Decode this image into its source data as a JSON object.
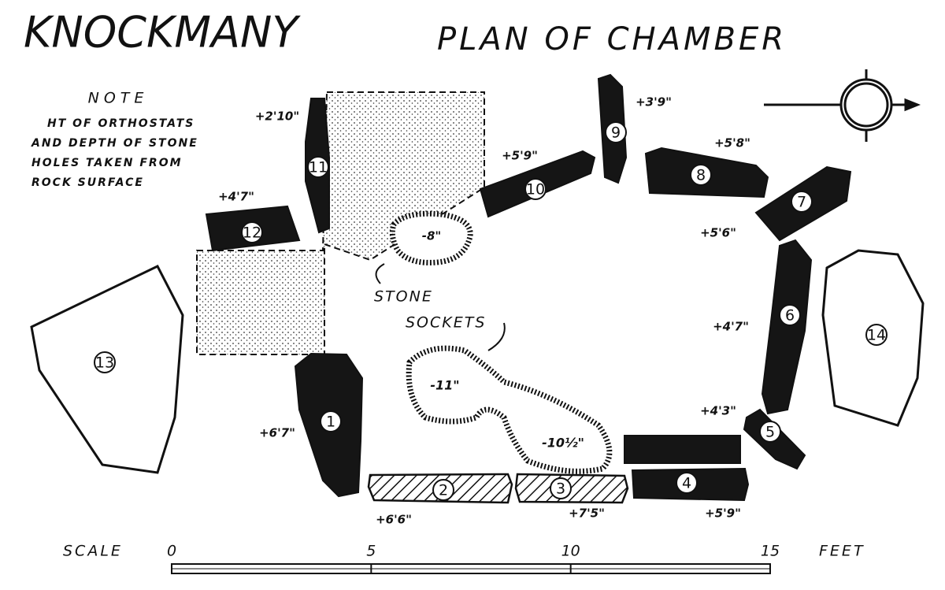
{
  "header": {
    "title": "KNOCKMANY",
    "subtitle": "PLAN OF CHAMBER"
  },
  "note": {
    "heading": "NOTE",
    "lines": [
      "HT OF ORTHOSTATS",
      "AND DEPTH OF STONE",
      "HOLES TAKEN FROM",
      "ROCK SURFACE"
    ]
  },
  "stones": [
    {
      "label": "1",
      "height": "+6'7\""
    },
    {
      "label": "2",
      "height": "+6'6\""
    },
    {
      "label": "3",
      "height": "+7'5\""
    },
    {
      "label": "4",
      "height": "+5'9\""
    },
    {
      "label": "5",
      "height": "+4'3\""
    },
    {
      "label": "6",
      "height": "+4'7\""
    },
    {
      "label": "7",
      "height": "+5'6\""
    },
    {
      "label": "8",
      "height": "+5'8\""
    },
    {
      "label": "9",
      "height": "+3'9\""
    },
    {
      "label": "10",
      "height": "+5'9\""
    },
    {
      "label": "11",
      "height": "+2'10\""
    },
    {
      "label": "12",
      "height": "+4'7\""
    },
    {
      "label": "13"
    },
    {
      "label": "14"
    }
  ],
  "sockets": [
    {
      "depth": "-8\""
    },
    {
      "depth": "-11\""
    },
    {
      "depth": "-10½\""
    }
  ],
  "annotations": [
    "STONE",
    "SOCKETS"
  ],
  "scale": {
    "label": "SCALE",
    "unit": "FEET",
    "ticks": [
      0,
      5,
      10,
      15
    ]
  }
}
